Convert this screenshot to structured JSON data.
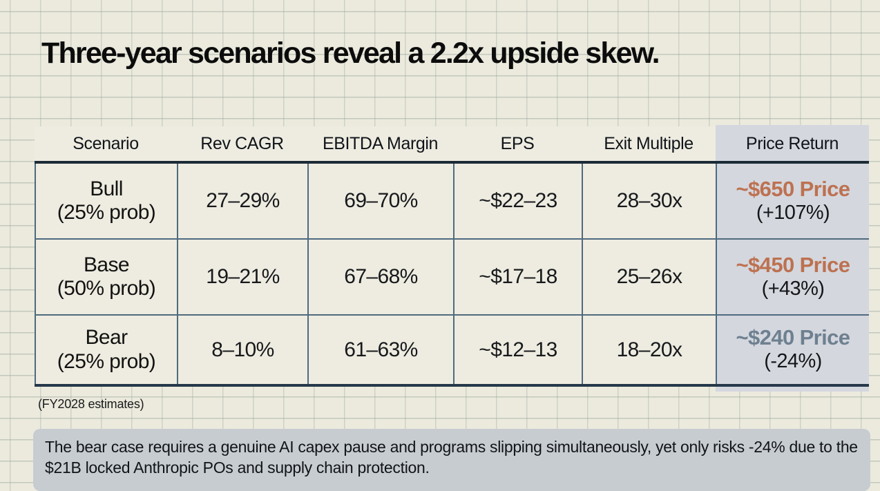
{
  "title": "Three-year scenarios reveal a 2.2x upside skew.",
  "table": {
    "columns": [
      "Scenario",
      "Rev CAGR",
      "EBITDA Margin",
      "EPS",
      "Exit Multiple",
      "Price Return"
    ],
    "rows": [
      {
        "scenario": "Bull",
        "probability": "(25% prob)",
        "rev_cagr": "27–29%",
        "ebitda_margin": "69–70%",
        "eps": "~$22–23",
        "exit_multiple": "28–30x",
        "price_target": "~$650 Price",
        "price_return": "(+107%)",
        "price_color": "#bd7150"
      },
      {
        "scenario": "Base",
        "probability": "(50% prob)",
        "rev_cagr": "19–21%",
        "ebitda_margin": "67–68%",
        "eps": "~$17–18",
        "exit_multiple": "25–26x",
        "price_target": "~$450 Price",
        "price_return": "(+43%)",
        "price_color": "#bd7150"
      },
      {
        "scenario": "Bear",
        "probability": "(25% prob)",
        "rev_cagr": "8–10%",
        "ebitda_margin": "61–63%",
        "eps": "~$12–13",
        "exit_multiple": "18–20x",
        "price_target": "~$240 Price",
        "price_return": "(-24%)",
        "price_color": "#6e8090"
      }
    ]
  },
  "footnote": "(FY2028 estimates)",
  "note": "The bear case requires a genuine AI capex pause and programs slipping simultaneously, yet only risks -24% due to the $21B locked Anthropic POs and supply chain protection.",
  "colors": {
    "upside_accent": "#bd7150",
    "downside_accent": "#6e8090",
    "highlight_column_bg": "#d4d7de",
    "note_bg": "#c7ccd1",
    "header_rule": "#1c2a37",
    "grid_rule": "#4e6a7e"
  }
}
